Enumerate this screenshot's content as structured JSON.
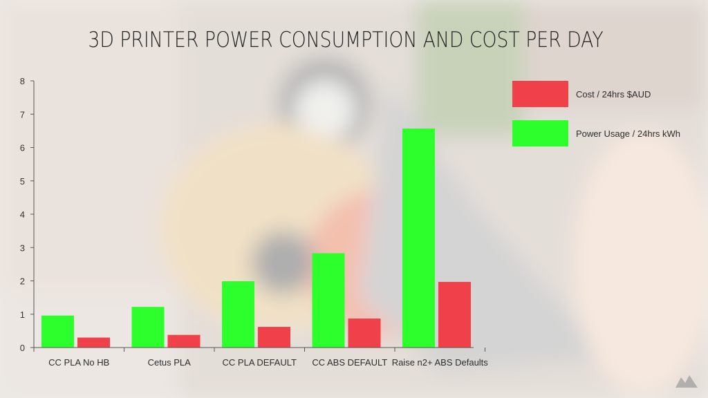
{
  "colors": {
    "cost": "#f0414a",
    "power": "#2dff2d",
    "axis": "#555555",
    "overlay": "#ffffff"
  },
  "chart_data": {
    "type": "bar",
    "title": "3D PRINTER POWER CONSUMPTION AND COST PER DAY",
    "categories": [
      "CC PLA No HB",
      "Cetus PLA",
      "CC PLA DEFAULT",
      "CC ABS DEFAULT",
      "Raise n2+ ABS Defaults"
    ],
    "series": [
      {
        "name": "Power Usage / 24hrs kWh",
        "key": "power",
        "values": [
          0.96,
          1.22,
          1.99,
          2.83,
          6.57
        ]
      },
      {
        "name": "Cost / 24hrs $AUD",
        "key": "cost",
        "values": [
          0.3,
          0.38,
          0.62,
          0.87,
          1.97
        ]
      }
    ],
    "ylim": [
      0,
      8
    ],
    "yticks": [
      0,
      1,
      2,
      3,
      4,
      5,
      6,
      7,
      8
    ],
    "xlabel": "",
    "ylabel": "",
    "legend_position": "top-right",
    "legend_order": [
      "cost",
      "power"
    ],
    "grid": false
  },
  "logo": {
    "icon": "brand-logo-icon"
  }
}
